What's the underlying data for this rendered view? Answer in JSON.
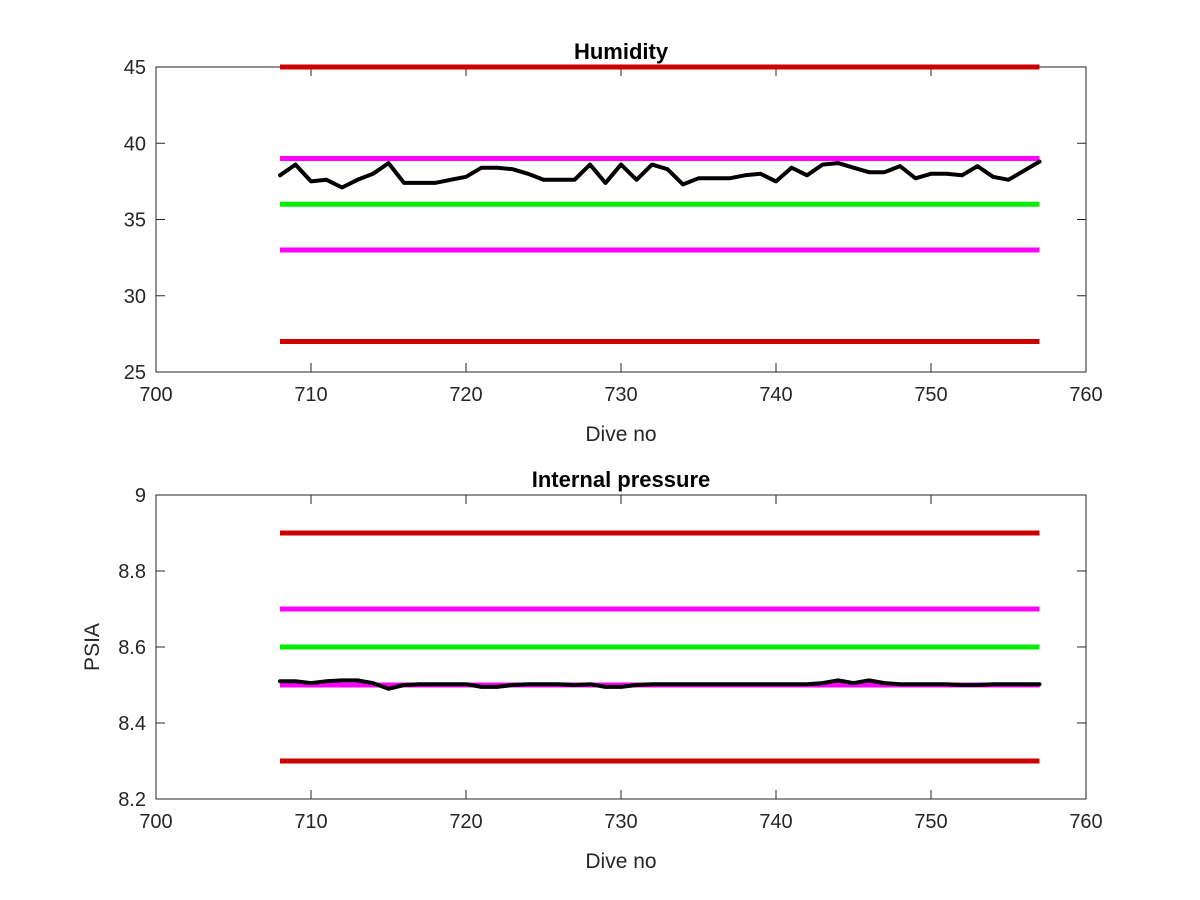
{
  "chart_data": [
    {
      "type": "line",
      "title": "Humidity",
      "xlabel": "Dive no",
      "ylabel": "",
      "xlim": [
        700,
        760
      ],
      "ylim": [
        25,
        45
      ],
      "xticks": [
        "700",
        "710",
        "720",
        "730",
        "740",
        "750",
        "760"
      ],
      "yticks": [
        "25",
        "30",
        "35",
        "40",
        "45"
      ],
      "grid": false,
      "reference_lines": [
        {
          "y": 45,
          "x": [
            708,
            757
          ],
          "color": "#cc0000"
        },
        {
          "y": 39,
          "x": [
            708,
            757
          ],
          "color": "#ff00ff"
        },
        {
          "y": 36,
          "x": [
            708,
            757
          ],
          "color": "#00ee00"
        },
        {
          "y": 33,
          "x": [
            708,
            757
          ],
          "color": "#ff00ff"
        },
        {
          "y": 27,
          "x": [
            708,
            757
          ],
          "color": "#cc0000"
        }
      ],
      "series": [
        {
          "color": "#000000",
          "x": [
            708,
            709,
            710,
            711,
            712,
            713,
            714,
            715,
            716,
            717,
            718,
            719,
            720,
            721,
            722,
            723,
            724,
            725,
            726,
            727,
            728,
            729,
            730,
            731,
            732,
            733,
            734,
            735,
            736,
            737,
            738,
            739,
            740,
            741,
            742,
            743,
            744,
            745,
            746,
            747,
            748,
            749,
            750,
            751,
            752,
            753,
            754,
            755,
            756,
            757
          ],
          "y": [
            37.9,
            38.6,
            37.5,
            37.6,
            37.1,
            37.6,
            38.0,
            38.7,
            37.4,
            37.4,
            37.4,
            37.6,
            37.8,
            38.4,
            38.4,
            38.3,
            38.0,
            37.6,
            37.6,
            37.6,
            38.6,
            37.4,
            38.6,
            37.6,
            38.6,
            38.3,
            37.3,
            37.7,
            37.7,
            37.7,
            37.9,
            38.0,
            37.5,
            38.4,
            37.9,
            38.6,
            38.7,
            38.4,
            38.1,
            38.1,
            38.5,
            37.7,
            38.0,
            38.0,
            37.9,
            38.5,
            37.8,
            37.6,
            38.2,
            38.8
          ]
        }
      ]
    },
    {
      "type": "line",
      "title": "Internal pressure",
      "xlabel": "Dive no",
      "ylabel": "PSIA",
      "xlim": [
        700,
        760
      ],
      "ylim": [
        8.2,
        9.0
      ],
      "xticks": [
        "700",
        "710",
        "720",
        "730",
        "740",
        "750",
        "760"
      ],
      "yticks": [
        "8.2",
        "8.4",
        "8.6",
        "8.8",
        "9"
      ],
      "grid": false,
      "reference_lines": [
        {
          "y": 8.9,
          "x": [
            708,
            757
          ],
          "color": "#cc0000"
        },
        {
          "y": 8.7,
          "x": [
            708,
            757
          ],
          "color": "#ff00ff"
        },
        {
          "y": 8.6,
          "x": [
            708,
            757
          ],
          "color": "#00ee00"
        },
        {
          "y": 8.5,
          "x": [
            708,
            757
          ],
          "color": "#ff00ff"
        },
        {
          "y": 8.3,
          "x": [
            708,
            757
          ],
          "color": "#cc0000"
        }
      ],
      "series": [
        {
          "color": "#000000",
          "x": [
            708,
            709,
            710,
            711,
            712,
            713,
            714,
            715,
            716,
            717,
            718,
            719,
            720,
            721,
            722,
            723,
            724,
            725,
            726,
            727,
            728,
            729,
            730,
            731,
            732,
            733,
            734,
            735,
            736,
            737,
            738,
            739,
            740,
            741,
            742,
            743,
            744,
            745,
            746,
            747,
            748,
            749,
            750,
            751,
            752,
            753,
            754,
            755,
            756,
            757
          ],
          "y": [
            8.51,
            8.51,
            8.505,
            8.51,
            8.512,
            8.512,
            8.505,
            8.49,
            8.5,
            8.502,
            8.502,
            8.502,
            8.502,
            8.495,
            8.495,
            8.5,
            8.502,
            8.502,
            8.502,
            8.5,
            8.502,
            8.495,
            8.495,
            8.5,
            8.502,
            8.502,
            8.502,
            8.502,
            8.502,
            8.502,
            8.502,
            8.502,
            8.502,
            8.502,
            8.502,
            8.505,
            8.512,
            8.505,
            8.512,
            8.505,
            8.502,
            8.502,
            8.502,
            8.502,
            8.5,
            8.5,
            8.502,
            8.502,
            8.502,
            8.502
          ]
        }
      ]
    }
  ]
}
